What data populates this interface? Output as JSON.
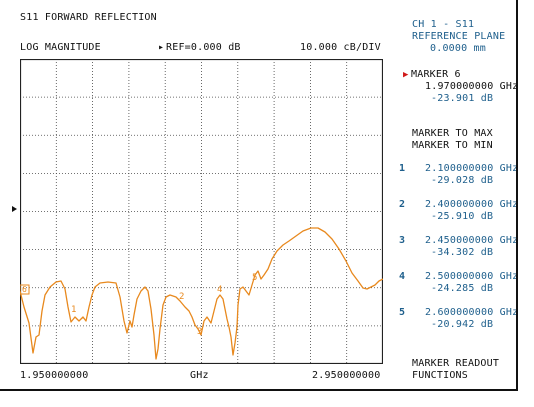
{
  "header": {
    "title": "S11 FORWARD REFLECTION",
    "format": "LOG MAGNITUDE",
    "ref_marker": "▸",
    "ref": "REF=0.000 dB",
    "scale": "10.000 cB/DIV"
  },
  "channel": {
    "line1": "CH 1 - S11",
    "line2": "REFERENCE PLANE",
    "line3": "0.0000 mm"
  },
  "active_marker": {
    "label": "MARKER 6",
    "freq": "1.970000000 GHz",
    "value": "-23.901 dB"
  },
  "softkeys": {
    "to_max": "MARKER TO MAX",
    "to_min": "MARKER TO MIN",
    "readout_1": "MARKER READOUT",
    "readout_2": "FUNCTIONS"
  },
  "markers": [
    {
      "num": "1",
      "freq": "2.100000000 GHz",
      "value": "-29.028 dB"
    },
    {
      "num": "2",
      "freq": "2.400000000 GHz",
      "value": "-25.910 dB"
    },
    {
      "num": "3",
      "freq": "2.450000000 GHz",
      "value": "-34.302 dB"
    },
    {
      "num": "4",
      "freq": "2.500000000 GHz",
      "value": "-24.285 dB"
    },
    {
      "num": "5",
      "freq": "2.600000000 GHz",
      "value": "-20.942 dB"
    }
  ],
  "axis": {
    "start": "1.950000000",
    "unit": "GHz",
    "stop": "2.950000000"
  },
  "trace_labels": [
    "6",
    "1",
    "2",
    "3",
    "4",
    "5"
  ],
  "colors": {
    "trace": "#e8891e",
    "grid": "#444444",
    "text": "#111111",
    "accent": "#1e5f8c",
    "marker_arrow": "#d01818"
  }
}
